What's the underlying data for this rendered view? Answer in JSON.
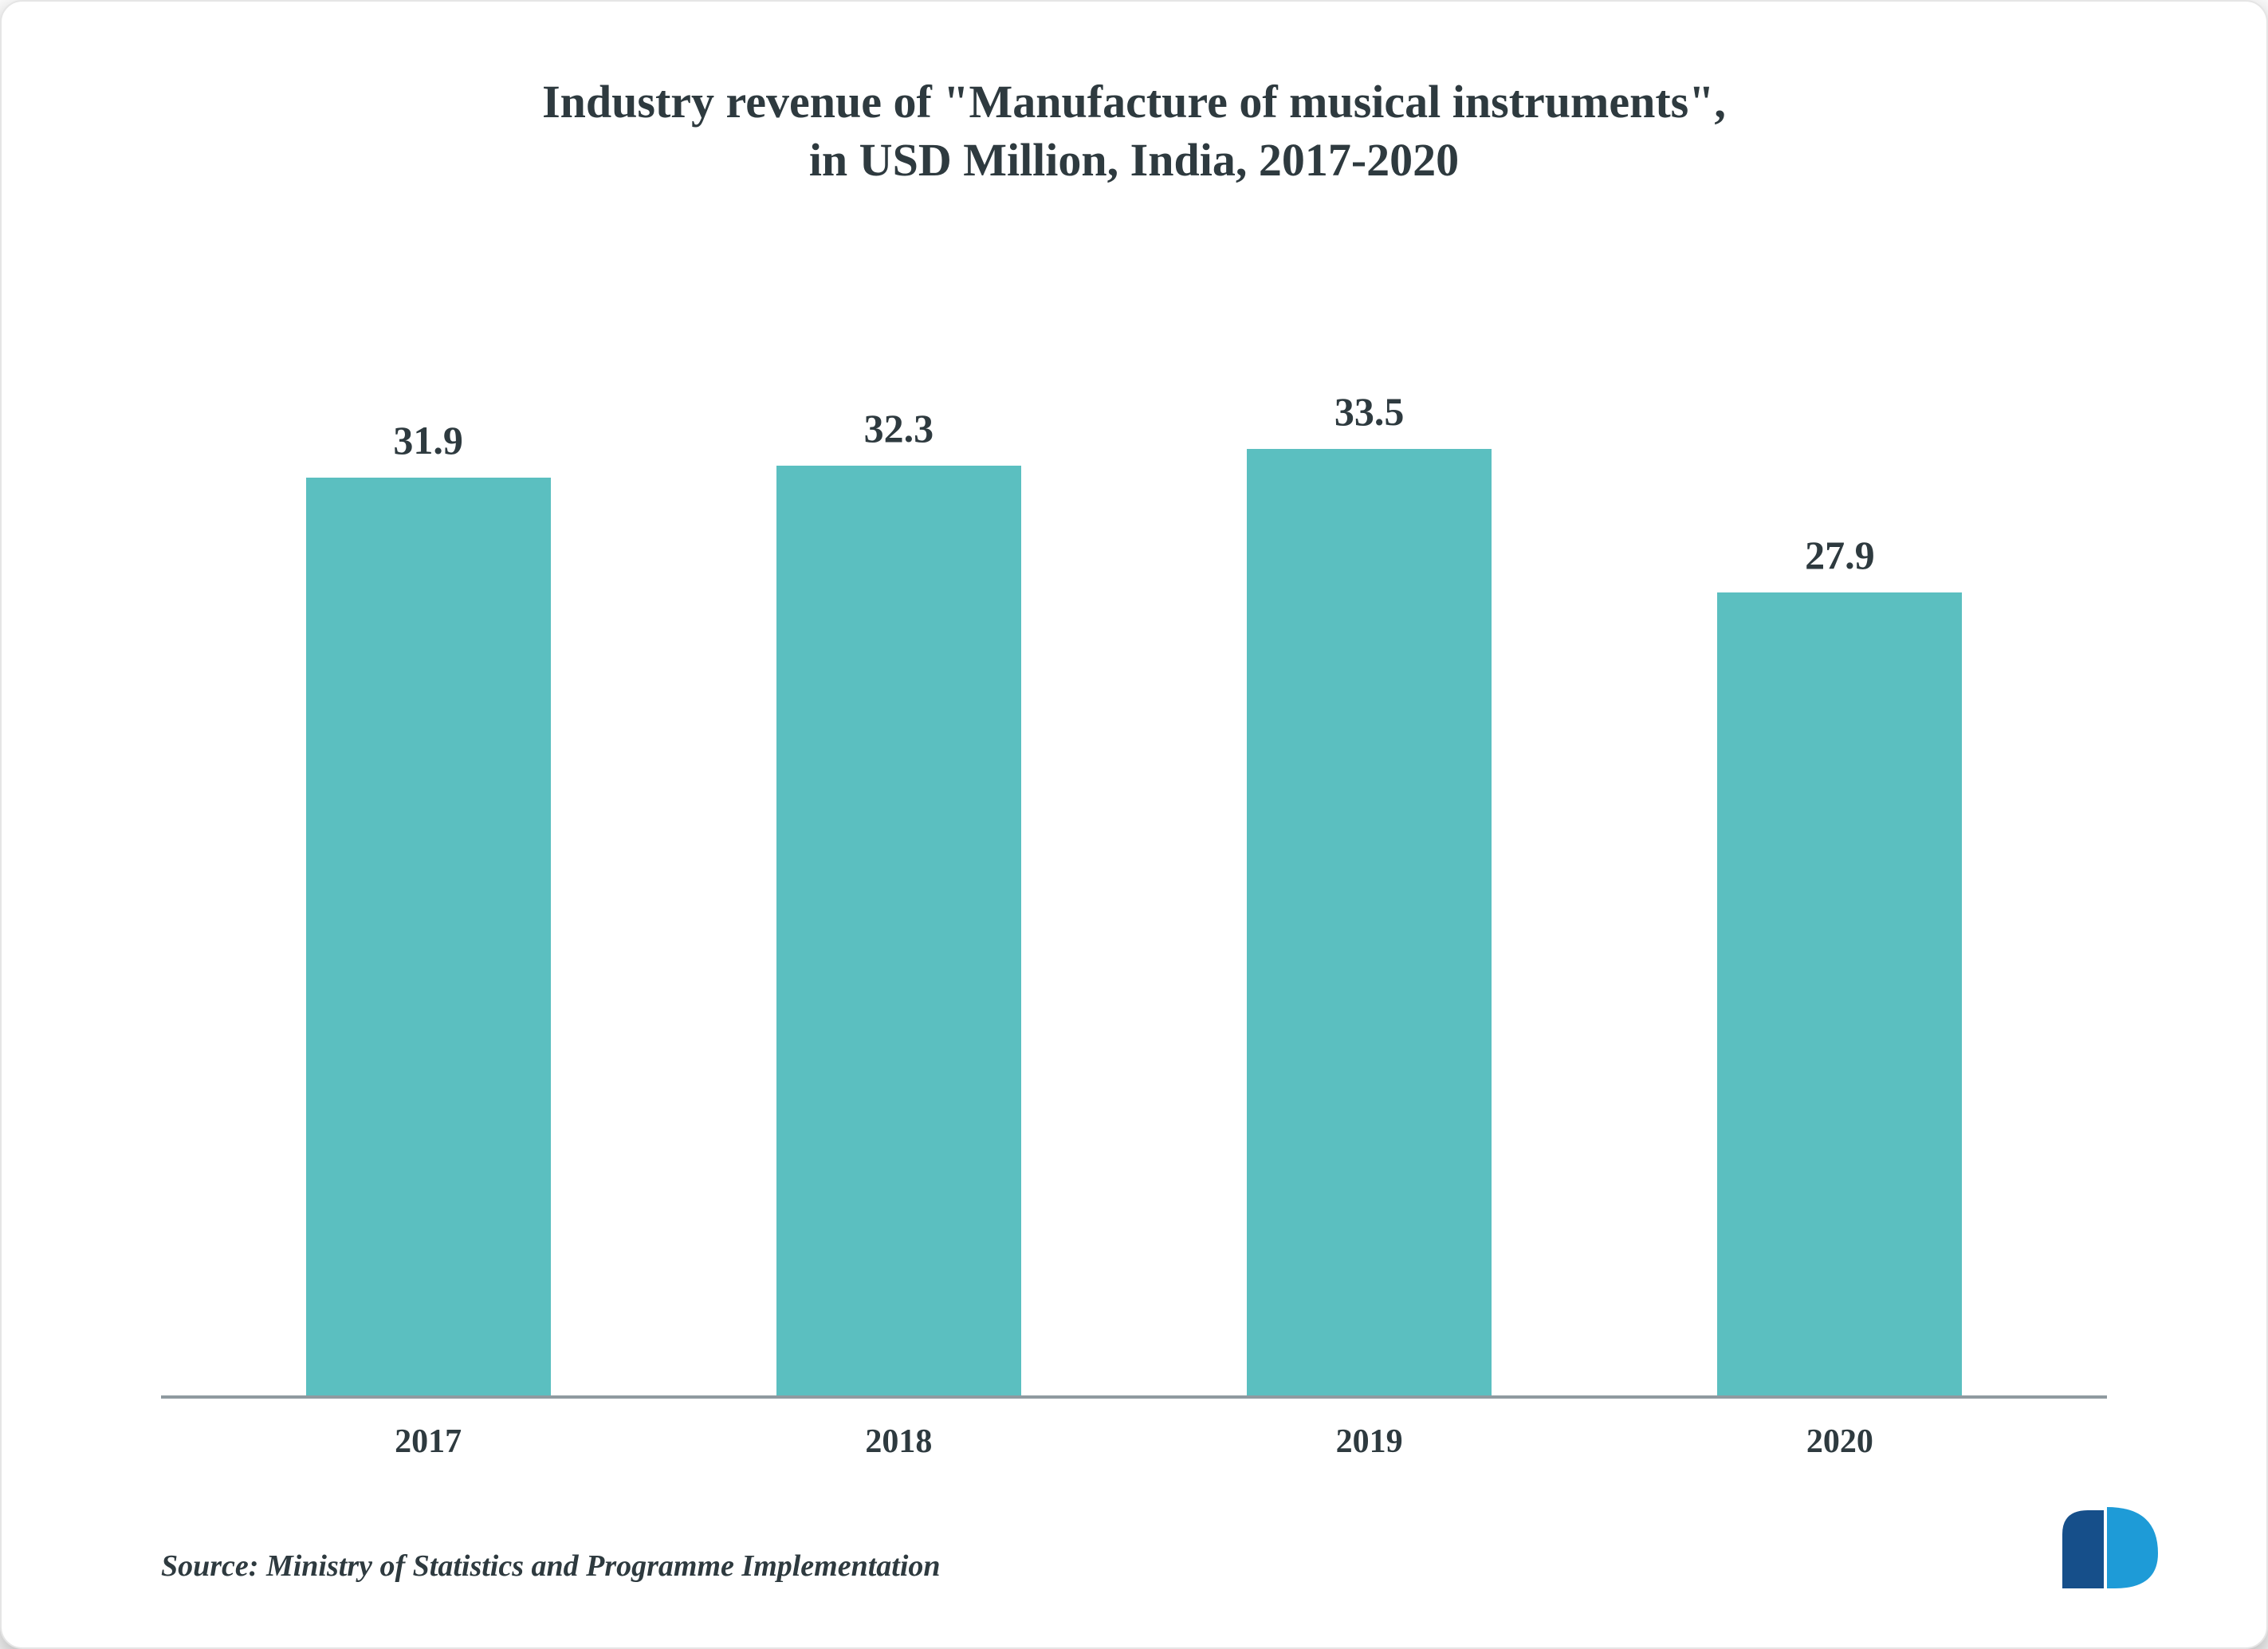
{
  "chart": {
    "type": "bar",
    "title_line1": "Industry revenue of \"Manufacture of musical instruments\",",
    "title_line2": "in USD Million, India, 2017-2020",
    "title_fontsize": 58,
    "title_color": "#2e3a3f",
    "categories": [
      "2017",
      "2018",
      "2019",
      "2020"
    ],
    "values": [
      31.9,
      32.3,
      33.5,
      27.9
    ],
    "value_labels": [
      "31.9",
      "32.3",
      "33.5",
      "27.9"
    ],
    "ymax": 35,
    "bar_color": "#5bbfc0",
    "bar_width_ratio": 0.52,
    "value_label_fontsize": 50,
    "value_label_color": "#2e3a3f",
    "x_tick_fontsize": 42,
    "x_tick_color": "#2e3a3f",
    "axis_line_color": "#8f9aa0",
    "background_color": "#ffffff"
  },
  "source": {
    "text": "Source: Ministry of Statistics and Programme Implementation",
    "fontsize": 38,
    "color": "#2e3a3f"
  },
  "logo": {
    "color_primary": "#164f8a",
    "color_secondary": "#1e9bd7"
  }
}
